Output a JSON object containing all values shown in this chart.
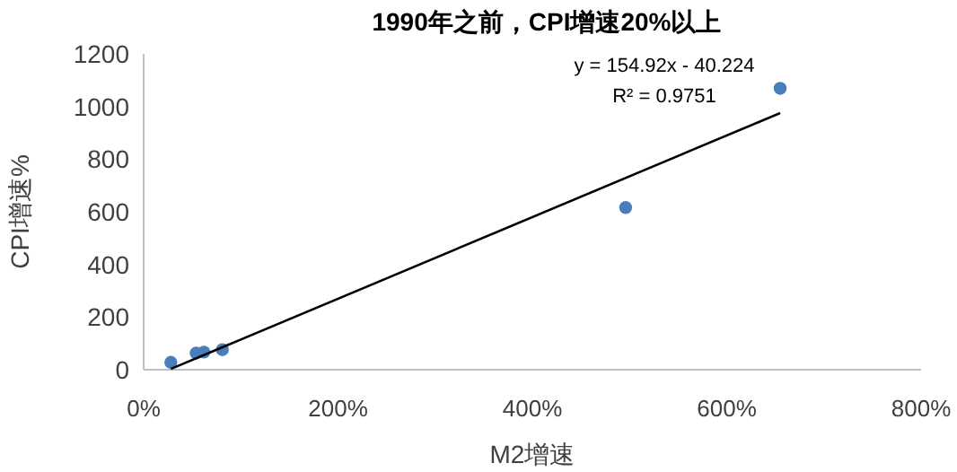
{
  "chart_data": {
    "type": "scatter",
    "title": "1990年之前，CPI增速20%以上",
    "xlabel": "M2增速",
    "ylabel": "CPI增速%",
    "xlim": [
      0,
      8
    ],
    "ylim": [
      0,
      1200
    ],
    "xticks": [
      {
        "value": 0,
        "label": "0%"
      },
      {
        "value": 2,
        "label": "200%"
      },
      {
        "value": 4,
        "label": "400%"
      },
      {
        "value": 6,
        "label": "600%"
      },
      {
        "value": 8,
        "label": "800%"
      }
    ],
    "yticks": [
      0,
      200,
      400,
      600,
      800,
      1000,
      1200
    ],
    "grid": false,
    "series": [
      {
        "marker": "circle",
        "color": "#4a7ebb",
        "x": [
          0.28,
          0.54,
          0.62,
          0.81,
          4.96,
          6.55
        ],
        "values": [
          28,
          63,
          67,
          76,
          616,
          1069
        ]
      },
      {
        "type": "line",
        "color": "#000000",
        "x": [
          0.28,
          6.55
        ],
        "values": [
          3,
          975
        ]
      }
    ],
    "annotations": [
      "y = 154.92x - 40.224",
      "R² = 0.9751"
    ]
  }
}
